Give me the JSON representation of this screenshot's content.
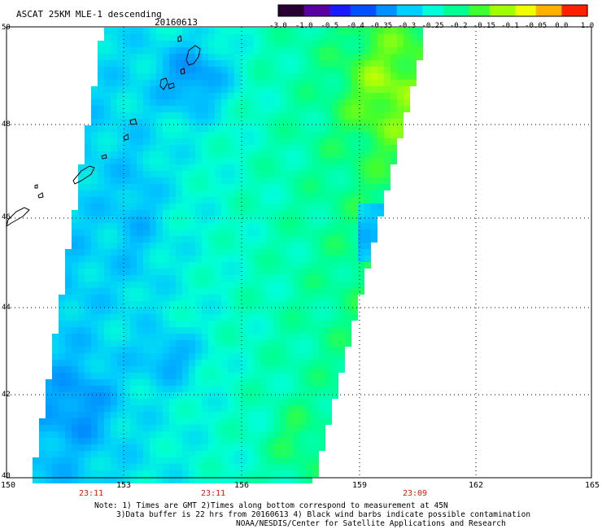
{
  "header": {
    "title": "ASCAT 25KM MLE-1 descending",
    "date": "20160613"
  },
  "colorbar": {
    "labels": [
      "-3.0",
      "-1.0",
      "-0.5",
      "-0.4",
      "-0.35",
      "-0.3",
      "-0.25",
      "-0.2",
      "-0.15",
      "-0.1",
      "-0.05",
      "0.0",
      "1.0"
    ],
    "colors": [
      "#2a0033",
      "#5a00a0",
      "#1a1aff",
      "#0050ff",
      "#0090ff",
      "#00d0ff",
      "#00ffd8",
      "#00ff90",
      "#40ff30",
      "#a0ff00",
      "#f0ff00",
      "#ffb000",
      "#ff2000"
    ]
  },
  "axes": {
    "x_ticks": [
      "150",
      "153",
      "156",
      "159",
      "162",
      "165"
    ],
    "y_ticks": [
      "50",
      "48",
      "46",
      "44",
      "42",
      "40"
    ],
    "lon_range": [
      150,
      165
    ],
    "lat_range": [
      40,
      50
    ]
  },
  "times": [
    "23:11",
    "23:11",
    "23:09"
  ],
  "notes": {
    "line1": "Note: 1) Times are GMT 2)Times along bottom correspond to measurement at 45N",
    "line2": "3)Data buffer is 22 hrs from 20160613 4) Black wind barbs indicate possible contamination",
    "line3": "NOAA/NESDIS/Center for Satellite Applications and Research"
  }
}
